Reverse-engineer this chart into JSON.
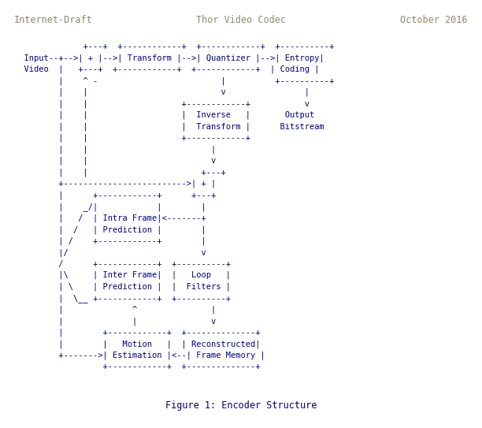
{
  "header_left": "Internet-Draft",
  "header_center": "Thor Video Codec",
  "header_right": "October 2016",
  "footer": "Figure 1: Encoder Structure",
  "header_color": "#8B8B6B",
  "text_color": "#00008B",
  "footer_color": "#000080",
  "bg_color": "#ffffff",
  "font_size": 7.5,
  "header_font_size": 8.5,
  "footer_font_size": 8.5,
  "diagram_lines": [
    "              +---+  +------------+  +------------+  +----------+",
    "Input--+-->| + |-->| Transform |-->| Quantizer |-->| Entropy|",
    "Video  |   +---+  +------------+  +------------+  | Coding |",
    "       |    ^ -                         |          +----------+",
    "       |    |                           v                |",
    "       |    |                   +------------+           v",
    "       |    |                   |  Inverse   |       Output",
    "       |    |                   |  Transform |      Bitstream",
    "       |    |                   +------------+",
    "       |    |                         |",
    "       |    |                         v",
    "       |    |                       +---+",
    "       +------------------------->| + |",
    "       |      +------------+      +---+",
    "       |     _|            |        |",
    "       |    / | Intra Frame|<-------+",
    "       |   /  | Prediction |        |",
    "       |  /   +------------+        |",
    "       | /                          v",
    "       |/     +------------+  +----------+",
    "       /      | Inter Frame|  |   Loop   |",
    "       |\\     | Prediction |  |  Filters |",
    "       | \\__  +------------+  +----------+",
    "       |              ^               |",
    "       |              |               v",
    "       |        +------------+  +--------------+",
    "       |        |   Motion   |  | Reconstructed|",
    "       +------->| Estimation |<--| Frame Memory |",
    "                +------------+  +--------------+"
  ]
}
